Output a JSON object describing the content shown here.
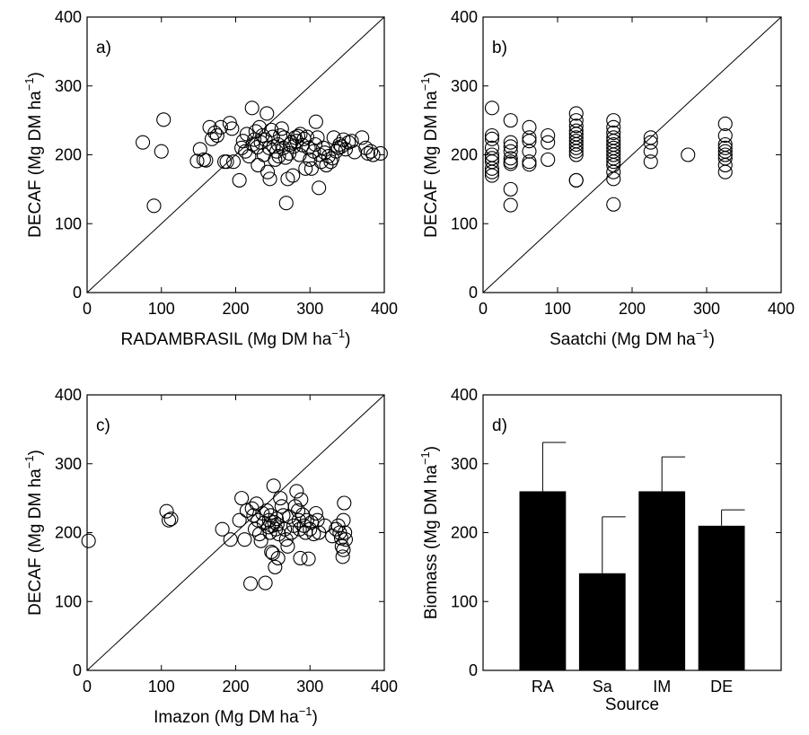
{
  "chart_data": [
    {
      "id": "a",
      "type": "scatter",
      "panel_label": "a)",
      "xlabel": "RADAMBRASIL (Mg DM ha",
      "ylabel": "DECAF (Mg DM ha",
      "unit_exponent": "−1",
      "xlim": [
        0,
        400
      ],
      "ylim": [
        0,
        400
      ],
      "xticks": [
        "0",
        "100",
        "200",
        "300",
        "400"
      ],
      "yticks": [
        "0",
        "100",
        "200",
        "300",
        "400"
      ],
      "one_to_one_line": true,
      "marker": "open-circle",
      "points": [
        [
          75,
          218
        ],
        [
          90,
          126
        ],
        [
          100,
          205
        ],
        [
          103,
          251
        ],
        [
          148,
          191
        ],
        [
          152,
          208
        ],
        [
          157,
          193
        ],
        [
          160,
          192
        ],
        [
          165,
          240
        ],
        [
          168,
          223
        ],
        [
          172,
          232
        ],
        [
          175,
          228
        ],
        [
          180,
          240
        ],
        [
          185,
          190
        ],
        [
          188,
          190
        ],
        [
          192,
          246
        ],
        [
          195,
          238
        ],
        [
          197,
          190
        ],
        [
          205,
          163
        ],
        [
          208,
          210
        ],
        [
          210,
          220
        ],
        [
          213,
          205
        ],
        [
          215,
          230
        ],
        [
          218,
          198
        ],
        [
          222,
          268
        ],
        [
          223,
          215
        ],
        [
          225,
          222
        ],
        [
          227,
          234
        ],
        [
          229,
          211
        ],
        [
          230,
          185
        ],
        [
          232,
          240
        ],
        [
          234,
          218
        ],
        [
          236,
          228
        ],
        [
          238,
          200
        ],
        [
          240,
          222
        ],
        [
          242,
          260
        ],
        [
          243,
          175
        ],
        [
          245,
          210
        ],
        [
          246,
          165
        ],
        [
          248,
          236
        ],
        [
          250,
          226
        ],
        [
          251,
          212
        ],
        [
          253,
          193
        ],
        [
          255,
          205
        ],
        [
          257,
          215
        ],
        [
          258,
          198
        ],
        [
          260,
          228
        ],
        [
          262,
          238
        ],
        [
          264,
          210
        ],
        [
          265,
          225
        ],
        [
          267,
          196
        ],
        [
          268,
          130
        ],
        [
          270,
          165
        ],
        [
          272,
          202
        ],
        [
          273,
          215
        ],
        [
          275,
          218
        ],
        [
          277,
          170
        ],
        [
          278,
          212
        ],
        [
          280,
          225
        ],
        [
          282,
          220
        ],
        [
          284,
          227
        ],
        [
          286,
          200
        ],
        [
          287,
          230
        ],
        [
          290,
          214
        ],
        [
          292,
          223
        ],
        [
          294,
          180
        ],
        [
          296,
          226
        ],
        [
          298,
          210
        ],
        [
          300,
          193
        ],
        [
          302,
          180
        ],
        [
          305,
          205
        ],
        [
          307,
          215
        ],
        [
          308,
          248
        ],
        [
          310,
          225
        ],
        [
          312,
          152
        ],
        [
          313,
          200
        ],
        [
          315,
          190
        ],
        [
          318,
          210
        ],
        [
          320,
          203
        ],
        [
          322,
          185
        ],
        [
          325,
          198
        ],
        [
          328,
          190
        ],
        [
          330,
          195
        ],
        [
          332,
          225
        ],
        [
          335,
          205
        ],
        [
          338,
          210
        ],
        [
          340,
          215
        ],
        [
          342,
          212
        ],
        [
          345,
          222
        ],
        [
          348,
          208
        ],
        [
          352,
          218
        ],
        [
          356,
          220
        ],
        [
          360,
          204
        ],
        [
          370,
          225
        ],
        [
          375,
          210
        ],
        [
          378,
          202
        ],
        [
          382,
          205
        ],
        [
          385,
          200
        ],
        [
          395,
          202
        ]
      ]
    },
    {
      "id": "b",
      "type": "scatter",
      "panel_label": "b)",
      "xlabel": "Saatchi (Mg DM ha",
      "ylabel": "DECAF (Mg DM ha",
      "unit_exponent": "−1",
      "xlim": [
        0,
        400
      ],
      "ylim": [
        0,
        400
      ],
      "xticks": [
        "0",
        "100",
        "200",
        "300",
        "400"
      ],
      "yticks": [
        "0",
        "100",
        "200",
        "300",
        "400"
      ],
      "one_to_one_line": true,
      "marker": "open-circle",
      "points": [
        [
          12,
          268
        ],
        [
          12,
          228
        ],
        [
          12,
          223
        ],
        [
          12,
          210
        ],
        [
          12,
          200
        ],
        [
          12,
          195
        ],
        [
          12,
          190
        ],
        [
          12,
          180
        ],
        [
          12,
          175
        ],
        [
          12,
          170
        ],
        [
          37,
          250
        ],
        [
          37,
          218
        ],
        [
          37,
          212
        ],
        [
          37,
          205
        ],
        [
          37,
          195
        ],
        [
          37,
          190
        ],
        [
          37,
          187
        ],
        [
          37,
          150
        ],
        [
          37,
          127
        ],
        [
          62,
          240
        ],
        [
          62,
          225
        ],
        [
          62,
          220
        ],
        [
          62,
          205
        ],
        [
          62,
          190
        ],
        [
          62,
          186
        ],
        [
          87,
          228
        ],
        [
          87,
          218
        ],
        [
          87,
          193
        ],
        [
          125,
          260
        ],
        [
          125,
          250
        ],
        [
          125,
          242
        ],
        [
          125,
          235
        ],
        [
          125,
          230
        ],
        [
          125,
          225
        ],
        [
          125,
          220
        ],
        [
          125,
          215
        ],
        [
          125,
          210
        ],
        [
          125,
          205
        ],
        [
          125,
          200
        ],
        [
          125,
          163
        ],
        [
          125,
          163
        ],
        [
          175,
          250
        ],
        [
          175,
          240
        ],
        [
          175,
          232
        ],
        [
          175,
          225
        ],
        [
          175,
          220
        ],
        [
          175,
          215
        ],
        [
          175,
          210
        ],
        [
          175,
          205
        ],
        [
          175,
          200
        ],
        [
          175,
          195
        ],
        [
          175,
          190
        ],
        [
          175,
          185
        ],
        [
          175,
          175
        ],
        [
          175,
          165
        ],
        [
          175,
          128
        ],
        [
          225,
          225
        ],
        [
          225,
          218
        ],
        [
          225,
          205
        ],
        [
          225,
          190
        ],
        [
          275,
          200
        ],
        [
          325,
          245
        ],
        [
          325,
          228
        ],
        [
          325,
          215
        ],
        [
          325,
          210
        ],
        [
          325,
          205
        ],
        [
          325,
          200
        ],
        [
          325,
          195
        ],
        [
          325,
          185
        ],
        [
          325,
          175
        ]
      ]
    },
    {
      "id": "c",
      "type": "scatter",
      "panel_label": "c)",
      "xlabel": "Imazon (Mg DM ha",
      "ylabel": "DECAF (Mg DM ha",
      "unit_exponent": "−1",
      "xlim": [
        0,
        400
      ],
      "ylim": [
        0,
        400
      ],
      "xticks": [
        "0",
        "100",
        "200",
        "300",
        "400"
      ],
      "yticks": [
        "0",
        "100",
        "200",
        "300",
        "400"
      ],
      "one_to_one_line": true,
      "marker": "open-circle",
      "points": [
        [
          2,
          188
        ],
        [
          107,
          231
        ],
        [
          110,
          218
        ],
        [
          113,
          220
        ],
        [
          182,
          205
        ],
        [
          193,
          190
        ],
        [
          205,
          218
        ],
        [
          208,
          250
        ],
        [
          212,
          190
        ],
        [
          215,
          232
        ],
        [
          220,
          126
        ],
        [
          222,
          235
        ],
        [
          224,
          225
        ],
        [
          226,
          205
        ],
        [
          228,
          242
        ],
        [
          230,
          218
        ],
        [
          232,
          198
        ],
        [
          234,
          188
        ],
        [
          236,
          228
        ],
        [
          238,
          214
        ],
        [
          240,
          127
        ],
        [
          242,
          232
        ],
        [
          244,
          208
        ],
        [
          245,
          218
        ],
        [
          246,
          200
        ],
        [
          247,
          225
        ],
        [
          248,
          172
        ],
        [
          249,
          210
        ],
        [
          250,
          170
        ],
        [
          251,
          268
        ],
        [
          252,
          215
        ],
        [
          253,
          150
        ],
        [
          254,
          205
        ],
        [
          255,
          220
        ],
        [
          256,
          212
        ],
        [
          257,
          163
        ],
        [
          258,
          198
        ],
        [
          260,
          250
        ],
        [
          262,
          238
        ],
        [
          264,
          225
        ],
        [
          266,
          205
        ],
        [
          268,
          190
        ],
        [
          270,
          180
        ],
        [
          272,
          223
        ],
        [
          275,
          200
        ],
        [
          278,
          210
        ],
        [
          280,
          238
        ],
        [
          282,
          260
        ],
        [
          284,
          232
        ],
        [
          285,
          218
        ],
        [
          286,
          205
        ],
        [
          287,
          163
        ],
        [
          288,
          248
        ],
        [
          290,
          226
        ],
        [
          292,
          210
        ],
        [
          294,
          200
        ],
        [
          296,
          218
        ],
        [
          298,
          162
        ],
        [
          300,
          205
        ],
        [
          302,
          215
        ],
        [
          305,
          198
        ],
        [
          308,
          228
        ],
        [
          310,
          218
        ],
        [
          312,
          200
        ],
        [
          320,
          210
        ],
        [
          330,
          195
        ],
        [
          335,
          205
        ],
        [
          338,
          210
        ],
        [
          340,
          200
        ],
        [
          342,
          192
        ],
        [
          343,
          180
        ],
        [
          344,
          165
        ],
        [
          345,
          175
        ],
        [
          345,
          218
        ],
        [
          346,
          243
        ],
        [
          347,
          200
        ],
        [
          348,
          190
        ]
      ]
    },
    {
      "id": "d",
      "type": "bar",
      "panel_label": "d)",
      "xlabel": "Source",
      "ylabel": "Biomass (Mg DM ha",
      "unit_exponent": "−1",
      "ylim": [
        0,
        400
      ],
      "yticks": [
        "0",
        "100",
        "200",
        "300",
        "400"
      ],
      "categories": [
        "RA",
        "Sa",
        "IM",
        "DE"
      ],
      "values": [
        260,
        141,
        260,
        210
      ],
      "errors": [
        71,
        82,
        50,
        23
      ],
      "colors": {
        "bar": "#000000",
        "axis": "#000000",
        "background": "#ffffff"
      }
    }
  ]
}
